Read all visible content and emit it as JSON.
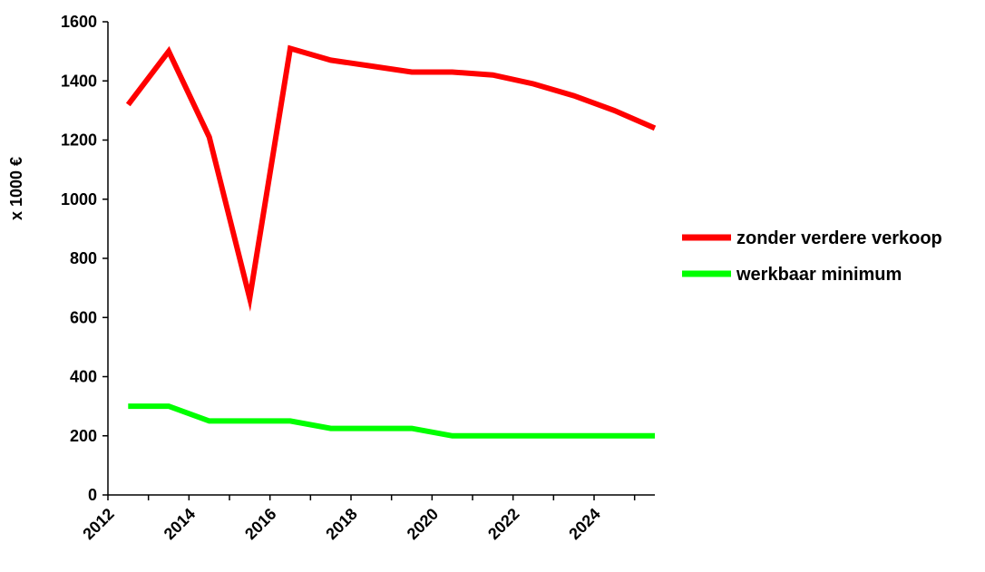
{
  "chart_data": {
    "type": "line",
    "title": "",
    "xlabel": "",
    "ylabel": "x 1000 €",
    "x": [
      2012.5,
      2013.5,
      2014.5,
      2015.5,
      2016.5,
      2017.5,
      2018.5,
      2019.5,
      2020.5,
      2021.5,
      2022.5,
      2023.5,
      2024.5,
      2025.5
    ],
    "xlim": [
      2012,
      2025.5
    ],
    "x_ticks": [
      2012,
      2013,
      2014,
      2015,
      2016,
      2017,
      2018,
      2019,
      2020,
      2021,
      2022,
      2023,
      2024,
      2025
    ],
    "x_tick_labels": [
      "2012",
      "",
      "2014",
      "",
      "2016",
      "",
      "2018",
      "",
      "2020",
      "",
      "2022",
      "",
      "2024",
      ""
    ],
    "ylim": [
      0,
      1600
    ],
    "y_ticks": [
      0,
      200,
      400,
      600,
      800,
      1000,
      1200,
      1400,
      1600
    ],
    "y_tick_labels": [
      "0",
      "200",
      "400",
      "600",
      "800",
      "1000",
      "1200",
      "1400",
      "1600"
    ],
    "grid": false,
    "legend_position": "right",
    "series": [
      {
        "name": "zonder verdere verkoop",
        "color": "#ff0000",
        "values": [
          1320,
          1500,
          1210,
          665,
          1510,
          1470,
          1450,
          1430,
          1430,
          1420,
          1390,
          1350,
          1300,
          1240
        ]
      },
      {
        "name": "werkbaar minimum",
        "color": "#00ff00",
        "values": [
          300,
          300,
          250,
          250,
          250,
          225,
          225,
          225,
          200,
          200,
          200,
          200,
          200,
          200
        ]
      }
    ]
  }
}
